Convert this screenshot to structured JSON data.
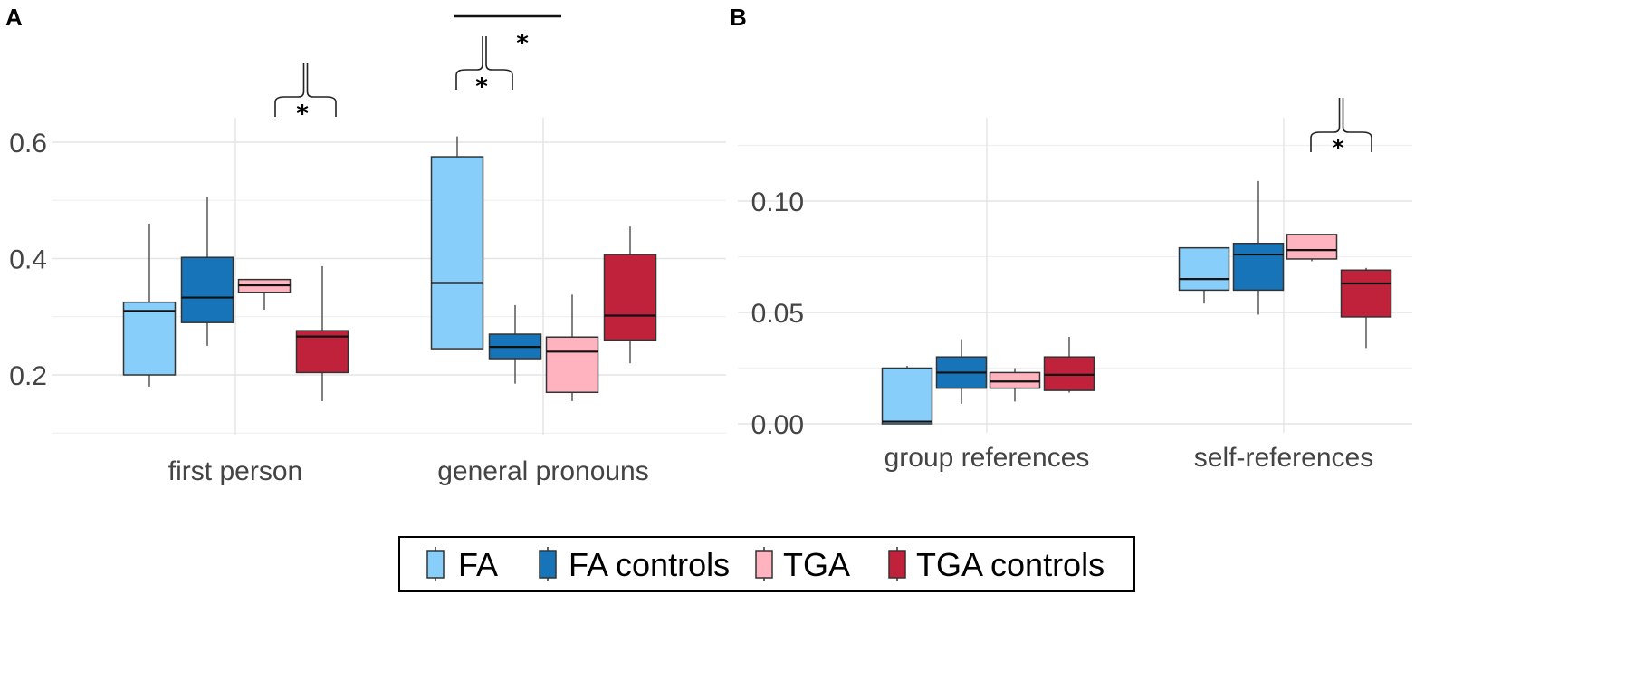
{
  "chart_data": [
    {
      "panel": "A",
      "type": "boxplot",
      "categories": [
        "first person",
        "general pronouns"
      ],
      "ylim": [
        0.1,
        0.7
      ],
      "yticks": [
        "0.2",
        "0.4",
        "0.6"
      ],
      "ytick_values": [
        0.2,
        0.4,
        0.6
      ],
      "series": [
        {
          "name": "FA",
          "color": "#87CEFA",
          "boxes": [
            {
              "min": 0.18,
              "q1": 0.2,
              "median": 0.31,
              "q3": 0.325,
              "max": 0.46
            },
            {
              "min": 0.245,
              "q1": 0.245,
              "median": 0.358,
              "q3": 0.575,
              "max": 0.61
            }
          ]
        },
        {
          "name": "FA controls",
          "color": "#1874B8",
          "boxes": [
            {
              "min": 0.25,
              "q1": 0.29,
              "median": 0.333,
              "q3": 0.402,
              "max": 0.506
            },
            {
              "min": 0.185,
              "q1": 0.228,
              "median": 0.248,
              "q3": 0.27,
              "max": 0.32
            }
          ]
        },
        {
          "name": "TGA",
          "color": "#FFB3BE",
          "boxes": [
            {
              "min": 0.312,
              "q1": 0.342,
              "median": 0.354,
              "q3": 0.364,
              "max": 0.364
            },
            {
              "min": 0.155,
              "q1": 0.17,
              "median": 0.24,
              "q3": 0.265,
              "max": 0.338
            }
          ]
        },
        {
          "name": "TGA controls",
          "color": "#C0223B",
          "boxes": [
            {
              "min": 0.155,
              "q1": 0.204,
              "median": 0.266,
              "q3": 0.276,
              "max": 0.387
            },
            {
              "min": 0.22,
              "q1": 0.26,
              "median": 0.302,
              "q3": 0.407,
              "max": 0.455
            }
          ]
        }
      ],
      "significance": [
        {
          "label": "*",
          "category": "first person",
          "compare": [
            "TGA",
            "TGA controls"
          ]
        },
        {
          "label": "*",
          "category": "general pronouns",
          "compare": [
            "FA",
            "FA controls"
          ]
        },
        {
          "label": "*",
          "category": "general pronouns",
          "compare": [
            "FA vs FA controls",
            "TGA vs TGA controls"
          ]
        }
      ]
    },
    {
      "panel": "B",
      "type": "boxplot",
      "categories": [
        "group references",
        "self-references"
      ],
      "ylim": [
        -0.004,
        0.136
      ],
      "yticks": [
        "0.00",
        "0.05",
        "0.10"
      ],
      "ytick_values": [
        0.0,
        0.05,
        0.1
      ],
      "series": [
        {
          "name": "FA",
          "color": "#87CEFA",
          "boxes": [
            {
              "min": 0.0,
              "q1": 0.0,
              "median": 0.001,
              "q3": 0.025,
              "max": 0.026
            },
            {
              "min": 0.054,
              "q1": 0.06,
              "median": 0.065,
              "q3": 0.079,
              "max": 0.079
            }
          ]
        },
        {
          "name": "FA controls",
          "color": "#1874B8",
          "boxes": [
            {
              "min": 0.009,
              "q1": 0.016,
              "median": 0.023,
              "q3": 0.03,
              "max": 0.038
            },
            {
              "min": 0.049,
              "q1": 0.06,
              "median": 0.076,
              "q3": 0.081,
              "max": 0.109
            }
          ]
        },
        {
          "name": "TGA",
          "color": "#FFB3BE",
          "boxes": [
            {
              "min": 0.01,
              "q1": 0.016,
              "median": 0.019,
              "q3": 0.023,
              "max": 0.025
            },
            {
              "min": 0.073,
              "q1": 0.074,
              "median": 0.078,
              "q3": 0.085,
              "max": 0.085
            }
          ]
        },
        {
          "name": "TGA controls",
          "color": "#C0223B",
          "boxes": [
            {
              "min": 0.014,
              "q1": 0.015,
              "median": 0.022,
              "q3": 0.03,
              "max": 0.039
            },
            {
              "min": 0.034,
              "q1": 0.048,
              "median": 0.063,
              "q3": 0.069,
              "max": 0.07
            }
          ]
        }
      ],
      "significance": [
        {
          "label": "*",
          "category": "self-references",
          "compare": [
            "TGA",
            "TGA controls"
          ]
        }
      ]
    }
  ],
  "panel_labels": [
    "A",
    "B"
  ],
  "legend": {
    "items": [
      {
        "label": "FA",
        "color": "#87CEFA"
      },
      {
        "label": "FA controls",
        "color": "#1874B8"
      },
      {
        "label": "TGA",
        "color": "#FFB3BE"
      },
      {
        "label": "TGA controls",
        "color": "#C0223B"
      }
    ]
  },
  "sig_symbol": "*"
}
